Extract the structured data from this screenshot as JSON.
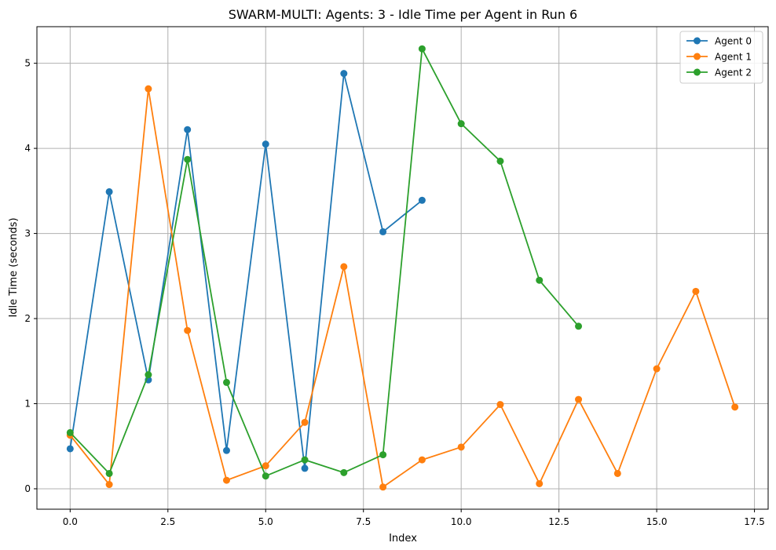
{
  "chart_data": {
    "type": "line",
    "title": "SWARM-MULTI: Agents: 3 - Idle Time per Agent in Run 6",
    "xlabel": "Index",
    "ylabel": "Idle Time (seconds)",
    "xlim": [
      -0.85,
      17.85
    ],
    "ylim": [
      -0.24,
      5.43
    ],
    "xticks": [
      0.0,
      2.5,
      5.0,
      7.5,
      10.0,
      12.5,
      15.0,
      17.5
    ],
    "xtick_labels": [
      "0.0",
      "2.5",
      "5.0",
      "7.5",
      "10.0",
      "12.5",
      "15.0",
      "17.5"
    ],
    "yticks": [
      0,
      1,
      2,
      3,
      4,
      5
    ],
    "ytick_labels": [
      "0",
      "1",
      "2",
      "3",
      "4",
      "5"
    ],
    "grid": true,
    "legend_position": "top-right",
    "series": [
      {
        "name": "Agent 0",
        "color": "#1f77b4",
        "x": [
          0,
          1,
          2,
          3,
          4,
          5,
          6,
          7,
          8,
          9
        ],
        "values": [
          0.47,
          3.49,
          1.28,
          4.22,
          0.45,
          4.05,
          0.24,
          4.88,
          3.02,
          3.39
        ]
      },
      {
        "name": "Agent 1",
        "color": "#ff7f0e",
        "x": [
          0,
          1,
          2,
          3,
          4,
          5,
          6,
          7,
          8,
          9,
          10,
          11,
          12,
          13,
          14,
          15,
          16,
          17
        ],
        "values": [
          0.63,
          0.05,
          4.7,
          1.86,
          0.1,
          0.27,
          0.78,
          2.61,
          0.02,
          0.34,
          0.49,
          0.99,
          0.06,
          1.05,
          0.18,
          1.41,
          2.32,
          0.96
        ]
      },
      {
        "name": "Agent 2",
        "color": "#2ca02c",
        "x": [
          0,
          1,
          2,
          3,
          4,
          5,
          6,
          7,
          8,
          9,
          10,
          11,
          12,
          13
        ],
        "values": [
          0.66,
          0.18,
          1.34,
          3.87,
          1.25,
          0.15,
          0.34,
          0.19,
          0.4,
          5.17,
          4.29,
          3.85,
          2.45,
          1.91
        ]
      }
    ]
  }
}
